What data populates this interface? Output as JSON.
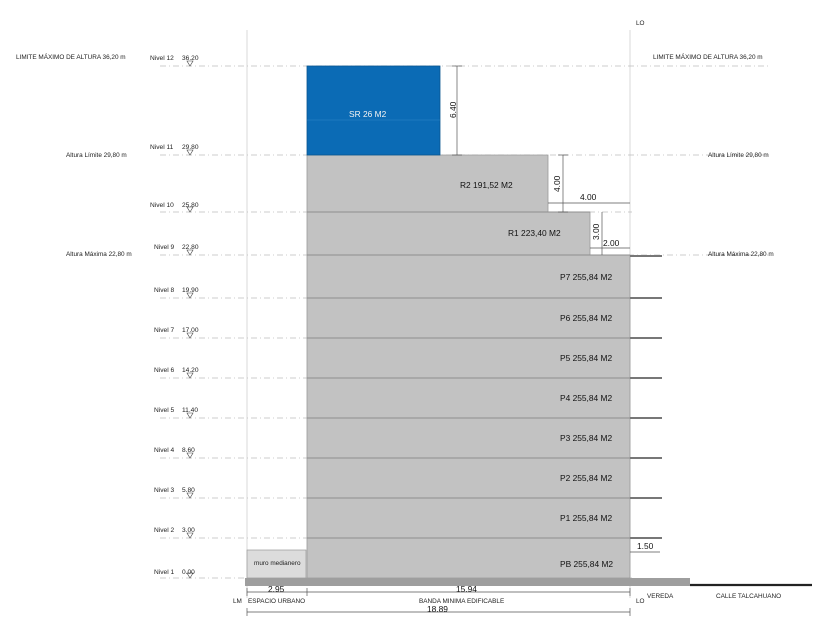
{
  "marks": {
    "lo_top": "LO",
    "limite_left": "LIMITE MÁXIMO DE ALTURA 36,20 m",
    "limite_right": "LIMITE MÁXIMO DE ALTURA 36,20 m",
    "altura_limite_left": "Altura Límite 29,80 m",
    "altura_limite_right": "Altura Límite 29,80 m",
    "altura_maxima_left": "Altura Máxima 22,80 m",
    "altura_maxima_right": "Altura Máxima 22,80 m"
  },
  "levels": [
    {
      "name": "Nivel 12",
      "elev": "36.20"
    },
    {
      "name": "Nivel 11",
      "elev": "29.80"
    },
    {
      "name": "Nivel 10",
      "elev": "25.80"
    },
    {
      "name": "Nivel 9",
      "elev": "22.80"
    },
    {
      "name": "Nivel 8",
      "elev": "19.90"
    },
    {
      "name": "Nivel 7",
      "elev": "17.00"
    },
    {
      "name": "Nivel 6",
      "elev": "14.20"
    },
    {
      "name": "Nivel 5",
      "elev": "11.40"
    },
    {
      "name": "Nivel 4",
      "elev": "8.60"
    },
    {
      "name": "Nivel 3",
      "elev": "5.80"
    },
    {
      "name": "Nivel 2",
      "elev": "3.00"
    },
    {
      "name": "Nivel 1",
      "elev": "0.00"
    }
  ],
  "floors": [
    {
      "label": "SR 26 M2"
    },
    {
      "label": "R2 191,52 M2"
    },
    {
      "label": "R1 223,40 M2"
    },
    {
      "label": "P7 255,84 M2"
    },
    {
      "label": "P6 255,84 M2"
    },
    {
      "label": "P5 255,84 M2"
    },
    {
      "label": "P4 255,84 M2"
    },
    {
      "label": "P3 255,84 M2"
    },
    {
      "label": "P2 255,84 M2"
    },
    {
      "label": "P1 255,84 M2"
    },
    {
      "label": "PB 255,84 M2"
    }
  ],
  "dimensions": {
    "sr_height": "6.40",
    "r2_height": "4.00",
    "r2_setback": "4.00",
    "r1_height": "3.00",
    "r1_setback": "2.00",
    "pb_offset": "1.50",
    "espacio_width": "2.95",
    "banda_width": "15.94",
    "total_width": "18.89"
  },
  "ground_labels": {
    "lm": "LM",
    "espacio": "ESPACIO URBANO",
    "banda": "BANDA MINIMA EDIFICABLE",
    "lo": "LO",
    "vereda": "VEREDA",
    "calle": "CALLE TALCAHUANO"
  },
  "muro_label": "muro medianero",
  "colors": {
    "building": "#c2c2c2",
    "sr_block": "#0b6bb5",
    "muro": "#dcdcdc"
  }
}
